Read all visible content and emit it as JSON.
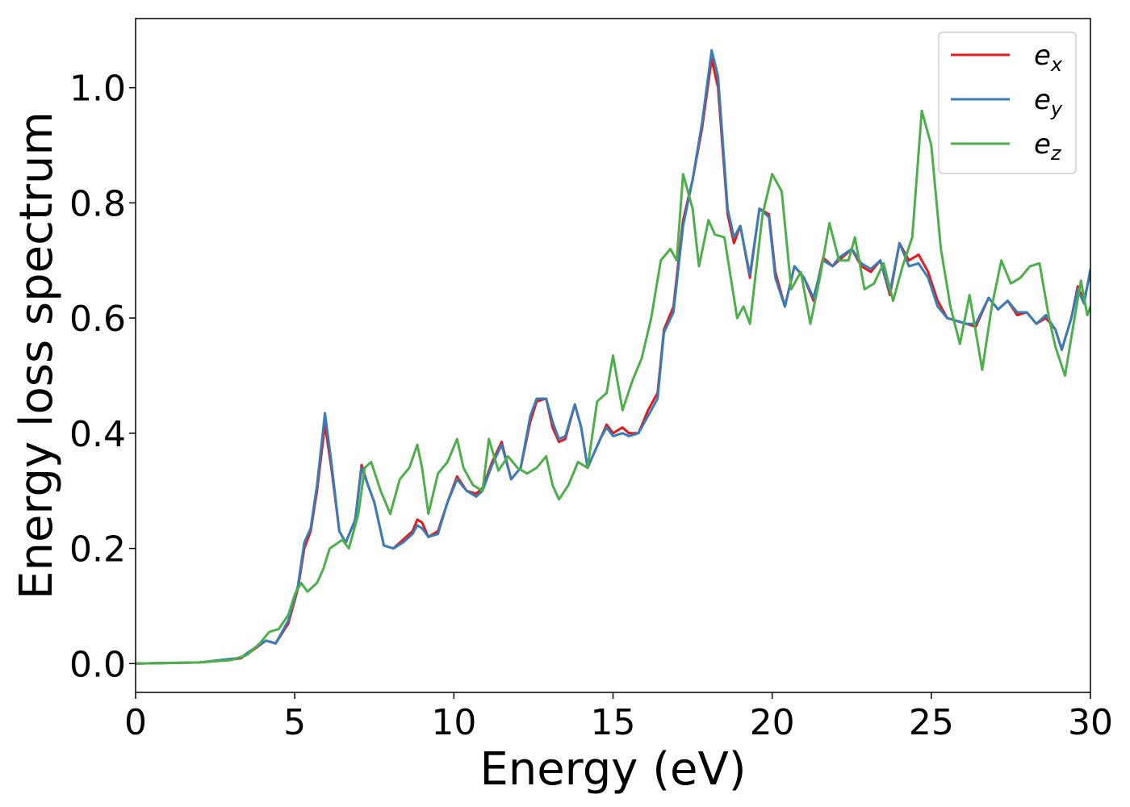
{
  "chart_data": {
    "type": "line",
    "xlabel": "Energy (eV)",
    "ylabel": "Energy loss spectrum",
    "xlim": [
      0,
      30
    ],
    "ylim": [
      -0.05,
      1.12
    ],
    "xticks": [
      0,
      5,
      10,
      15,
      20,
      25,
      30
    ],
    "xtick_labels": [
      "0",
      "5",
      "10",
      "15",
      "20",
      "25",
      "30"
    ],
    "yticks": [
      0.0,
      0.2,
      0.4,
      0.6,
      0.8,
      1.0
    ],
    "ytick_labels": [
      "0.0",
      "0.2",
      "0.4",
      "0.6",
      "0.8",
      "1.0"
    ],
    "grid": false,
    "legend_position": "top-right",
    "series": [
      {
        "name": "e",
        "sub": "x",
        "color": "#e41a1c",
        "points": [
          [
            0,
            0.0
          ],
          [
            2,
            0.002
          ],
          [
            2.8,
            0.006
          ],
          [
            3.3,
            0.009
          ],
          [
            3.6,
            0.02
          ],
          [
            4.1,
            0.04
          ],
          [
            4.4,
            0.035
          ],
          [
            4.8,
            0.07
          ],
          [
            5.1,
            0.13
          ],
          [
            5.3,
            0.2
          ],
          [
            5.5,
            0.23
          ],
          [
            5.7,
            0.3
          ],
          [
            5.95,
            0.415
          ],
          [
            6.15,
            0.34
          ],
          [
            6.4,
            0.23
          ],
          [
            6.6,
            0.21
          ],
          [
            6.9,
            0.25
          ],
          [
            7.1,
            0.345
          ],
          [
            7.3,
            0.31
          ],
          [
            7.5,
            0.28
          ],
          [
            7.8,
            0.205
          ],
          [
            8.1,
            0.2
          ],
          [
            8.4,
            0.215
          ],
          [
            8.7,
            0.23
          ],
          [
            8.85,
            0.25
          ],
          [
            9.0,
            0.245
          ],
          [
            9.2,
            0.22
          ],
          [
            9.5,
            0.23
          ],
          [
            9.8,
            0.28
          ],
          [
            10.1,
            0.325
          ],
          [
            10.4,
            0.3
          ],
          [
            10.7,
            0.295
          ],
          [
            10.9,
            0.305
          ],
          [
            11.2,
            0.35
          ],
          [
            11.5,
            0.385
          ],
          [
            11.8,
            0.32
          ],
          [
            12.1,
            0.34
          ],
          [
            12.4,
            0.42
          ],
          [
            12.6,
            0.455
          ],
          [
            12.9,
            0.46
          ],
          [
            13.1,
            0.41
          ],
          [
            13.3,
            0.385
          ],
          [
            13.5,
            0.39
          ],
          [
            13.8,
            0.45
          ],
          [
            14.0,
            0.41
          ],
          [
            14.2,
            0.34
          ],
          [
            14.6,
            0.39
          ],
          [
            14.8,
            0.415
          ],
          [
            15.0,
            0.4
          ],
          [
            15.3,
            0.41
          ],
          [
            15.5,
            0.4
          ],
          [
            15.8,
            0.4
          ],
          [
            16.1,
            0.44
          ],
          [
            16.4,
            0.47
          ],
          [
            16.6,
            0.58
          ],
          [
            16.9,
            0.62
          ],
          [
            17.2,
            0.77
          ],
          [
            17.5,
            0.84
          ],
          [
            17.8,
            0.93
          ],
          [
            18.1,
            1.05
          ],
          [
            18.3,
            1.0
          ],
          [
            18.6,
            0.78
          ],
          [
            18.8,
            0.73
          ],
          [
            19.0,
            0.76
          ],
          [
            19.3,
            0.67
          ],
          [
            19.6,
            0.79
          ],
          [
            19.9,
            0.78
          ],
          [
            20.1,
            0.68
          ],
          [
            20.4,
            0.62
          ],
          [
            20.7,
            0.69
          ],
          [
            21.0,
            0.67
          ],
          [
            21.3,
            0.63
          ],
          [
            21.6,
            0.705
          ],
          [
            21.9,
            0.69
          ],
          [
            22.1,
            0.7
          ],
          [
            22.5,
            0.72
          ],
          [
            22.8,
            0.69
          ],
          [
            23.1,
            0.68
          ],
          [
            23.4,
            0.7
          ],
          [
            23.7,
            0.64
          ],
          [
            24.0,
            0.73
          ],
          [
            24.3,
            0.7
          ],
          [
            24.6,
            0.71
          ],
          [
            24.9,
            0.68
          ],
          [
            25.2,
            0.63
          ],
          [
            25.5,
            0.6
          ],
          [
            25.8,
            0.595
          ],
          [
            26.1,
            0.59
          ],
          [
            26.4,
            0.585
          ],
          [
            26.8,
            0.635
          ],
          [
            27.1,
            0.615
          ],
          [
            27.4,
            0.63
          ],
          [
            27.7,
            0.605
          ],
          [
            28.0,
            0.61
          ],
          [
            28.3,
            0.59
          ],
          [
            28.6,
            0.6
          ],
          [
            28.9,
            0.58
          ],
          [
            29.1,
            0.545
          ],
          [
            29.4,
            0.6
          ],
          [
            29.6,
            0.655
          ],
          [
            29.8,
            0.63
          ],
          [
            30.0,
            0.68
          ]
        ]
      },
      {
        "name": "e",
        "sub": "y",
        "color": "#377eb8",
        "points": [
          [
            0,
            0.0
          ],
          [
            2,
            0.002
          ],
          [
            2.8,
            0.007
          ],
          [
            3.3,
            0.01
          ],
          [
            3.6,
            0.022
          ],
          [
            4.1,
            0.04
          ],
          [
            4.4,
            0.035
          ],
          [
            4.8,
            0.075
          ],
          [
            5.1,
            0.135
          ],
          [
            5.3,
            0.21
          ],
          [
            5.5,
            0.235
          ],
          [
            5.7,
            0.31
          ],
          [
            5.95,
            0.435
          ],
          [
            6.15,
            0.35
          ],
          [
            6.4,
            0.23
          ],
          [
            6.6,
            0.21
          ],
          [
            6.9,
            0.25
          ],
          [
            7.1,
            0.34
          ],
          [
            7.3,
            0.31
          ],
          [
            7.5,
            0.28
          ],
          [
            7.8,
            0.205
          ],
          [
            8.1,
            0.2
          ],
          [
            8.4,
            0.21
          ],
          [
            8.7,
            0.225
          ],
          [
            8.85,
            0.24
          ],
          [
            9.0,
            0.235
          ],
          [
            9.2,
            0.22
          ],
          [
            9.5,
            0.225
          ],
          [
            9.8,
            0.28
          ],
          [
            10.1,
            0.32
          ],
          [
            10.4,
            0.3
          ],
          [
            10.7,
            0.29
          ],
          [
            10.9,
            0.3
          ],
          [
            11.2,
            0.345
          ],
          [
            11.5,
            0.38
          ],
          [
            11.8,
            0.32
          ],
          [
            12.1,
            0.34
          ],
          [
            12.4,
            0.43
          ],
          [
            12.6,
            0.46
          ],
          [
            12.9,
            0.46
          ],
          [
            13.1,
            0.42
          ],
          [
            13.3,
            0.39
          ],
          [
            13.5,
            0.395
          ],
          [
            13.8,
            0.45
          ],
          [
            14.0,
            0.41
          ],
          [
            14.2,
            0.34
          ],
          [
            14.6,
            0.39
          ],
          [
            14.8,
            0.41
          ],
          [
            15.0,
            0.395
          ],
          [
            15.3,
            0.4
          ],
          [
            15.5,
            0.395
          ],
          [
            15.8,
            0.4
          ],
          [
            16.1,
            0.43
          ],
          [
            16.4,
            0.46
          ],
          [
            16.6,
            0.575
          ],
          [
            16.9,
            0.61
          ],
          [
            17.2,
            0.76
          ],
          [
            17.5,
            0.84
          ],
          [
            17.8,
            0.94
          ],
          [
            18.1,
            1.065
          ],
          [
            18.3,
            1.02
          ],
          [
            18.6,
            0.79
          ],
          [
            18.8,
            0.74
          ],
          [
            19.0,
            0.76
          ],
          [
            19.3,
            0.675
          ],
          [
            19.6,
            0.79
          ],
          [
            19.9,
            0.775
          ],
          [
            20.1,
            0.67
          ],
          [
            20.4,
            0.62
          ],
          [
            20.7,
            0.69
          ],
          [
            21.0,
            0.67
          ],
          [
            21.3,
            0.635
          ],
          [
            21.6,
            0.7
          ],
          [
            21.9,
            0.69
          ],
          [
            22.1,
            0.705
          ],
          [
            22.5,
            0.72
          ],
          [
            22.8,
            0.695
          ],
          [
            23.1,
            0.685
          ],
          [
            23.4,
            0.7
          ],
          [
            23.7,
            0.645
          ],
          [
            24.0,
            0.73
          ],
          [
            24.3,
            0.69
          ],
          [
            24.6,
            0.695
          ],
          [
            24.9,
            0.67
          ],
          [
            25.2,
            0.62
          ],
          [
            25.5,
            0.6
          ],
          [
            25.8,
            0.595
          ],
          [
            26.1,
            0.59
          ],
          [
            26.4,
            0.59
          ],
          [
            26.8,
            0.635
          ],
          [
            27.1,
            0.615
          ],
          [
            27.4,
            0.63
          ],
          [
            27.7,
            0.61
          ],
          [
            28.0,
            0.61
          ],
          [
            28.3,
            0.59
          ],
          [
            28.6,
            0.605
          ],
          [
            28.9,
            0.58
          ],
          [
            29.1,
            0.545
          ],
          [
            29.4,
            0.6
          ],
          [
            29.6,
            0.65
          ],
          [
            29.8,
            0.625
          ],
          [
            30.0,
            0.685
          ]
        ]
      },
      {
        "name": "e",
        "sub": "z",
        "color": "#4daf4a",
        "points": [
          [
            0,
            0.0
          ],
          [
            2,
            0.002
          ],
          [
            3,
            0.006
          ],
          [
            3.5,
            0.015
          ],
          [
            3.9,
            0.035
          ],
          [
            4.2,
            0.055
          ],
          [
            4.5,
            0.06
          ],
          [
            4.8,
            0.085
          ],
          [
            5.0,
            0.12
          ],
          [
            5.2,
            0.14
          ],
          [
            5.4,
            0.125
          ],
          [
            5.7,
            0.14
          ],
          [
            5.9,
            0.165
          ],
          [
            6.1,
            0.2
          ],
          [
            6.5,
            0.215
          ],
          [
            6.7,
            0.2
          ],
          [
            7.0,
            0.26
          ],
          [
            7.2,
            0.34
          ],
          [
            7.4,
            0.35
          ],
          [
            7.7,
            0.3
          ],
          [
            8.0,
            0.26
          ],
          [
            8.3,
            0.32
          ],
          [
            8.6,
            0.34
          ],
          [
            8.85,
            0.38
          ],
          [
            9.0,
            0.34
          ],
          [
            9.2,
            0.26
          ],
          [
            9.5,
            0.33
          ],
          [
            9.8,
            0.35
          ],
          [
            10.1,
            0.39
          ],
          [
            10.3,
            0.34
          ],
          [
            10.6,
            0.31
          ],
          [
            10.9,
            0.3
          ],
          [
            11.1,
            0.39
          ],
          [
            11.4,
            0.335
          ],
          [
            11.7,
            0.36
          ],
          [
            12.0,
            0.34
          ],
          [
            12.3,
            0.33
          ],
          [
            12.6,
            0.34
          ],
          [
            12.9,
            0.36
          ],
          [
            13.1,
            0.31
          ],
          [
            13.3,
            0.285
          ],
          [
            13.6,
            0.31
          ],
          [
            13.9,
            0.35
          ],
          [
            14.2,
            0.34
          ],
          [
            14.5,
            0.455
          ],
          [
            14.8,
            0.47
          ],
          [
            15.0,
            0.535
          ],
          [
            15.3,
            0.44
          ],
          [
            15.6,
            0.49
          ],
          [
            15.9,
            0.53
          ],
          [
            16.2,
            0.6
          ],
          [
            16.5,
            0.7
          ],
          [
            16.8,
            0.72
          ],
          [
            17.0,
            0.7
          ],
          [
            17.2,
            0.85
          ],
          [
            17.5,
            0.79
          ],
          [
            17.7,
            0.69
          ],
          [
            18.0,
            0.77
          ],
          [
            18.2,
            0.745
          ],
          [
            18.5,
            0.74
          ],
          [
            18.7,
            0.67
          ],
          [
            18.9,
            0.6
          ],
          [
            19.1,
            0.62
          ],
          [
            19.3,
            0.59
          ],
          [
            19.7,
            0.78
          ],
          [
            20.0,
            0.85
          ],
          [
            20.3,
            0.82
          ],
          [
            20.6,
            0.65
          ],
          [
            20.9,
            0.68
          ],
          [
            21.2,
            0.59
          ],
          [
            21.5,
            0.67
          ],
          [
            21.8,
            0.765
          ],
          [
            22.1,
            0.7
          ],
          [
            22.4,
            0.7
          ],
          [
            22.6,
            0.74
          ],
          [
            22.9,
            0.65
          ],
          [
            23.2,
            0.66
          ],
          [
            23.5,
            0.695
          ],
          [
            23.8,
            0.63
          ],
          [
            24.1,
            0.69
          ],
          [
            24.4,
            0.74
          ],
          [
            24.7,
            0.96
          ],
          [
            25.0,
            0.9
          ],
          [
            25.3,
            0.72
          ],
          [
            25.6,
            0.62
          ],
          [
            25.9,
            0.555
          ],
          [
            26.2,
            0.64
          ],
          [
            26.6,
            0.51
          ],
          [
            26.9,
            0.62
          ],
          [
            27.2,
            0.7
          ],
          [
            27.5,
            0.66
          ],
          [
            27.8,
            0.67
          ],
          [
            28.1,
            0.69
          ],
          [
            28.4,
            0.695
          ],
          [
            28.7,
            0.6
          ],
          [
            28.9,
            0.55
          ],
          [
            29.2,
            0.5
          ],
          [
            29.5,
            0.6
          ],
          [
            29.7,
            0.665
          ],
          [
            29.9,
            0.605
          ],
          [
            30.0,
            0.62
          ]
        ]
      }
    ]
  }
}
